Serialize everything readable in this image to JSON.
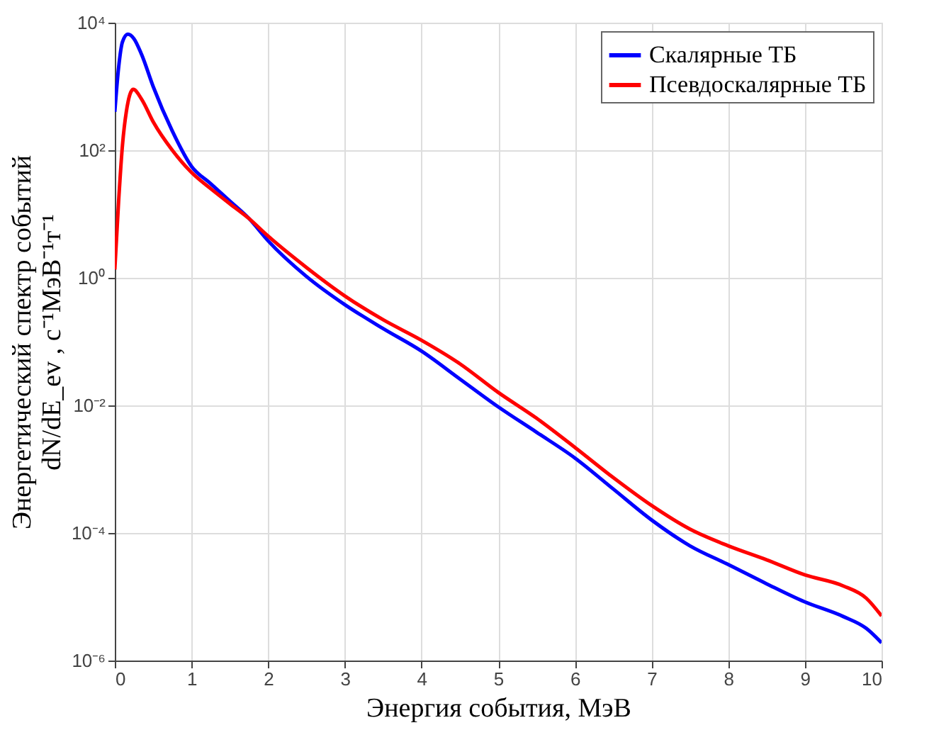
{
  "chart_data": {
    "type": "line",
    "xlabel": "Энергия  события, МэВ",
    "ylabel": [
      "Энергетический спектр событий",
      "dN/dE_ev , с⁻¹МэВ⁻¹т⁻¹"
    ],
    "log": "y",
    "xlim": [
      0,
      10
    ],
    "xticks": [
      0,
      1,
      2,
      3,
      4,
      5,
      6,
      7,
      8,
      9,
      10
    ],
    "ylim": [
      1e-06,
      10000
    ],
    "yticks": [
      {
        "value": 1e-06,
        "label": "10⁻⁶"
      },
      {
        "value": 0.0001,
        "label": "10⁻⁴"
      },
      {
        "value": 0.01,
        "label": "10⁻²"
      },
      {
        "value": 1,
        "label": "10⁰"
      },
      {
        "value": 100,
        "label": "10²"
      },
      {
        "value": 10000,
        "label": "10⁴"
      }
    ],
    "grid": true,
    "legend": "top right",
    "marker": "none",
    "line_style": "solid",
    "series": [
      {
        "name": "Скалярные ТБ",
        "color": "#0000ff",
        "x": [
          0,
          0.05,
          0.1,
          0.17,
          0.25,
          0.35,
          0.5,
          0.75,
          1.0,
          1.25,
          1.5,
          1.75,
          2.0,
          2.5,
          3.0,
          3.5,
          4.0,
          4.5,
          5.0,
          5.5,
          6.0,
          6.5,
          7.0,
          7.5,
          8.0,
          8.5,
          9.0,
          9.5,
          9.8,
          10
        ],
        "values": [
          400,
          2000,
          5000,
          6600,
          5600,
          3160,
          1000,
          200,
          56,
          30,
          16,
          8.5,
          3.8,
          1.05,
          0.38,
          0.16,
          0.071,
          0.026,
          0.0095,
          0.0038,
          0.0015,
          0.00049,
          0.00016,
          6.3e-05,
          3.2e-05,
          1.6e-05,
          8.3e-06,
          4.9e-06,
          3.2e-06,
          1.9e-06
        ]
      },
      {
        "name": "Псевдоскалярные ТБ",
        "color": "#ff0000",
        "x": [
          0,
          0.05,
          0.1,
          0.15,
          0.24,
          0.35,
          0.5,
          0.75,
          1.0,
          1.25,
          1.5,
          1.75,
          2.0,
          2.5,
          3.0,
          3.5,
          4.0,
          4.5,
          5.0,
          5.5,
          6.0,
          6.5,
          7.0,
          7.5,
          8.0,
          8.5,
          9.0,
          9.5,
          9.8,
          10
        ],
        "values": [
          1.35,
          16,
          120,
          400,
          900,
          630,
          280,
          100,
          45,
          25,
          14.5,
          8.5,
          4.5,
          1.45,
          0.52,
          0.22,
          0.105,
          0.045,
          0.016,
          0.0063,
          0.0022,
          0.00074,
          0.00027,
          0.000115,
          6.3e-05,
          3.8e-05,
          2.2e-05,
          1.48e-05,
          9.5e-06,
          5e-06
        ]
      }
    ]
  }
}
